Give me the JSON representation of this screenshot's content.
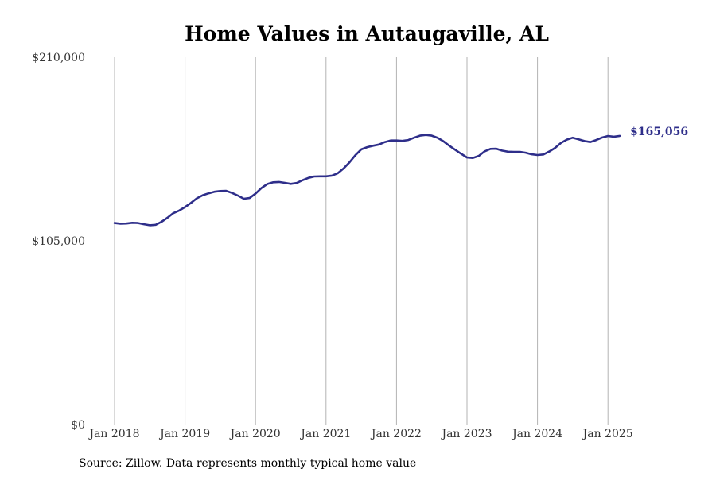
{
  "chart_data": {
    "type": "line",
    "title": "Home Values in Autaugaville, AL",
    "source": "Source: Zillow. Data represents monthly typical home value",
    "xlabel": "",
    "ylabel": "",
    "ylim": [
      0,
      210000
    ],
    "y_ticks": [
      {
        "value": 0,
        "label": "$0"
      },
      {
        "value": 105000,
        "label": "$105,000"
      },
      {
        "value": 210000,
        "label": "$210,000"
      }
    ],
    "x_ticks": [
      {
        "date": "2018-01",
        "label": "Jan 2018"
      },
      {
        "date": "2019-01",
        "label": "Jan 2019"
      },
      {
        "date": "2020-01",
        "label": "Jan 2020"
      },
      {
        "date": "2021-01",
        "label": "Jan 2021"
      },
      {
        "date": "2022-01",
        "label": "Jan 2022"
      },
      {
        "date": "2023-01",
        "label": "Jan 2023"
      },
      {
        "date": "2024-01",
        "label": "Jan 2024"
      },
      {
        "date": "2025-01",
        "label": "Jan 2025"
      }
    ],
    "xlim": [
      "2018-01",
      "2025-03"
    ],
    "grid": {
      "vertical": true,
      "horizontal": false
    },
    "line_color": "#2e2e8a",
    "end_label": "$165,056",
    "series": [
      {
        "x": [
          "2018-01",
          "2018-02",
          "2018-03",
          "2018-04",
          "2018-05",
          "2018-06",
          "2018-07",
          "2018-08",
          "2018-09",
          "2018-10",
          "2018-11",
          "2018-12",
          "2019-01",
          "2019-02",
          "2019-03",
          "2019-04",
          "2019-05",
          "2019-06",
          "2019-07",
          "2019-08",
          "2019-09",
          "2019-10",
          "2019-11",
          "2019-12",
          "2020-01",
          "2020-02",
          "2020-03",
          "2020-04",
          "2020-05",
          "2020-06",
          "2020-07",
          "2020-08",
          "2020-09",
          "2020-10",
          "2020-11",
          "2020-12",
          "2021-01",
          "2021-02",
          "2021-03",
          "2021-04",
          "2021-05",
          "2021-06",
          "2021-07",
          "2021-08",
          "2021-09",
          "2021-10",
          "2021-11",
          "2021-12",
          "2022-01",
          "2022-02",
          "2022-03",
          "2022-04",
          "2022-05",
          "2022-06",
          "2022-07",
          "2022-08",
          "2022-09",
          "2022-10",
          "2022-11",
          "2022-12",
          "2023-01",
          "2023-02",
          "2023-03",
          "2023-04",
          "2023-05",
          "2023-06",
          "2023-07",
          "2023-08",
          "2023-09",
          "2023-10",
          "2023-11",
          "2023-12",
          "2024-01",
          "2024-02",
          "2024-03",
          "2024-04",
          "2024-05",
          "2024-06",
          "2024-07",
          "2024-08",
          "2024-09",
          "2024-10",
          "2024-11",
          "2024-12",
          "2025-01",
          "2025-02",
          "2025-03"
        ],
        "values": [
          115200,
          114800,
          114900,
          115300,
          115200,
          114500,
          113900,
          114200,
          115900,
          118200,
          120800,
          122300,
          124300,
          126700,
          129300,
          131100,
          132200,
          133100,
          133500,
          133600,
          132400,
          130900,
          129100,
          129500,
          132000,
          135200,
          137500,
          138500,
          138700,
          138200,
          137600,
          138100,
          139700,
          141000,
          141800,
          141900,
          141900,
          142300,
          143700,
          146400,
          149900,
          154000,
          157300,
          158600,
          159400,
          160100,
          161500,
          162400,
          162400,
          162200,
          162700,
          164000,
          165200,
          165600,
          165200,
          163900,
          161900,
          159400,
          157100,
          154800,
          152700,
          152400,
          153600,
          156200,
          157600,
          157700,
          156600,
          156000,
          155900,
          155900,
          155400,
          154500,
          154100,
          154400,
          156100,
          158200,
          161000,
          162900,
          164000,
          163100,
          162100,
          161500,
          162700,
          164100,
          165000,
          164600,
          165056
        ]
      }
    ]
  }
}
